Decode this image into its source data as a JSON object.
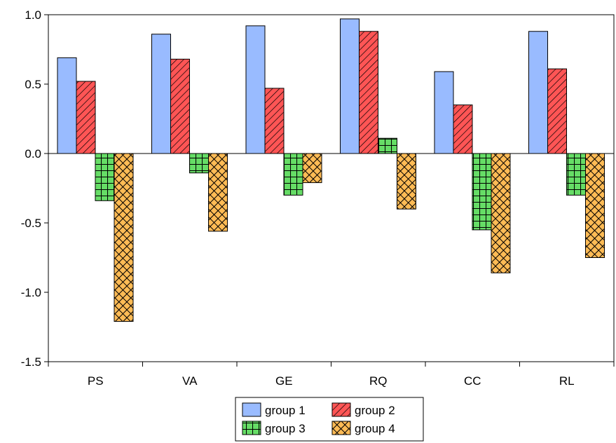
{
  "chart_data": {
    "type": "bar",
    "categories": [
      "PS",
      "VA",
      "GE",
      "RQ",
      "CC",
      "RL"
    ],
    "series": [
      {
        "name": "group 1",
        "values": [
          0.69,
          0.86,
          0.92,
          0.97,
          0.59,
          0.88
        ],
        "color": "#99BBFF",
        "pattern": "solid"
      },
      {
        "name": "group 2",
        "values": [
          0.52,
          0.68,
          0.47,
          0.88,
          0.35,
          0.61
        ],
        "color": "#FF5555",
        "pattern": "diagonal-hatch"
      },
      {
        "name": "group 3",
        "values": [
          -0.34,
          -0.14,
          -0.3,
          0.11,
          -0.55,
          -0.3
        ],
        "color": "#66DD66",
        "pattern": "grid"
      },
      {
        "name": "group 4",
        "values": [
          -1.21,
          -0.56,
          -0.21,
          -0.4,
          -0.86,
          -0.75
        ],
        "color": "#FFBB55",
        "pattern": "crosshatch"
      }
    ],
    "ylim": [
      -1.5,
      1.0
    ],
    "yticks": [
      "1.0",
      "0.5",
      "0.0",
      "-0.5",
      "-1.0",
      "-1.5"
    ],
    "title": "",
    "xlabel": "",
    "ylabel": "",
    "grid": false,
    "legend_position": "bottom-center"
  }
}
